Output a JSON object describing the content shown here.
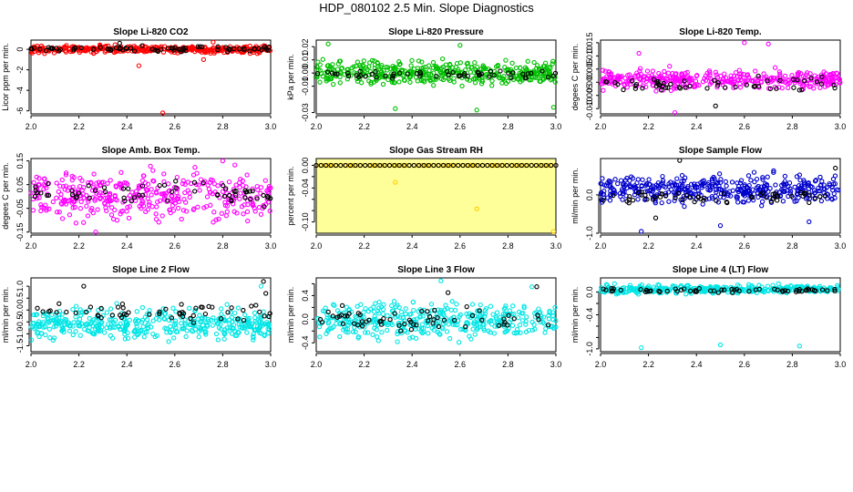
{
  "page": {
    "title": "HDP_080102  2.5 Min. Slope Diagnostics"
  },
  "chart_data": [
    {
      "type": "scatter",
      "title": "Slope Li-820 CO2",
      "ylabel": "Licor ppm per min.",
      "xlim": [
        2.0,
        3.0
      ],
      "ylim": [
        -6.3,
        0.9
      ],
      "xticks": [
        2.0,
        2.2,
        2.4,
        2.6,
        2.8,
        3.0
      ],
      "xticklabels": [
        "2.0",
        "2.2",
        "2.4",
        "2.6",
        "2.8",
        "3.0"
      ],
      "yticks": [
        -6,
        -4,
        -2,
        0
      ],
      "yticklabels": [
        "-6",
        "-4",
        "-2",
        "0"
      ],
      "background": "#ffffff",
      "series": [
        {
          "name": "all",
          "color": "#ff0000",
          "n": 380,
          "band": [
            -0.5,
            0.5
          ],
          "spread": 0.35,
          "outliers": [
            [
              2.45,
              -1.6
            ],
            [
              2.55,
              -6.2
            ],
            [
              2.72,
              -1.0
            ],
            [
              2.76,
              0.7
            ]
          ]
        },
        {
          "name": "highlight",
          "color": "#000000",
          "n": 75,
          "band": [
            -0.3,
            0.4
          ],
          "spread": 0.25,
          "outliers": [
            [
              2.37,
              0.6
            ]
          ]
        }
      ]
    },
    {
      "type": "scatter",
      "title": "Slope Li-820 Pressure",
      "ylabel": "kPa per min.",
      "xlim": [
        2.0,
        3.0
      ],
      "ylim": [
        -0.031,
        0.025
      ],
      "xticks": [
        2.0,
        2.2,
        2.4,
        2.6,
        2.8,
        3.0
      ],
      "xticklabels": [
        "2.0",
        "2.2",
        "2.4",
        "2.6",
        "2.8",
        "3.0"
      ],
      "yticks": [
        -0.03,
        -0.01,
        0.0,
        0.01,
        0.02
      ],
      "yticklabels": [
        "-0.03",
        "-0.01",
        "0.00",
        "0.01",
        "0.02"
      ],
      "background": "#ffffff",
      "series": [
        {
          "name": "all",
          "color": "#00c000",
          "n": 420,
          "band": [
            -0.012,
            0.012
          ],
          "spread": 0.0095,
          "outliers": [
            [
              2.05,
              0.022
            ],
            [
              2.33,
              -0.027
            ],
            [
              2.67,
              -0.028
            ],
            [
              2.99,
              -0.026
            ],
            [
              2.6,
              0.021
            ]
          ]
        },
        {
          "name": "highlight",
          "color": "#000000",
          "n": 55,
          "band": [
            -0.006,
            0.004
          ],
          "spread": 0.006,
          "outliers": []
        }
      ]
    },
    {
      "type": "scatter",
      "title": "Slope Li-820 Temp.",
      "ylabel": "degees C per min.",
      "xlim": [
        2.0,
        3.0
      ],
      "ylim": [
        -0.012,
        0.016
      ],
      "xticks": [
        2.0,
        2.2,
        2.4,
        2.6,
        2.8,
        3.0
      ],
      "xticklabels": [
        "2.0",
        "2.2",
        "2.4",
        "2.6",
        "2.8",
        "3.0"
      ],
      "yticks": [
        -0.01,
        -0.005,
        0.0,
        0.005,
        0.01,
        0.015
      ],
      "yticklabels": [
        "-0.010",
        "-0.005",
        "0.000",
        "0.005",
        "0.010",
        "0.015"
      ],
      "background": "#ffffff",
      "series": [
        {
          "name": "all",
          "color": "#ff00ff",
          "n": 380,
          "band": [
            -0.004,
            0.006
          ],
          "spread": 0.005,
          "outliers": [
            [
              2.31,
              -0.0115
            ],
            [
              2.6,
              0.015
            ],
            [
              2.7,
              0.0145
            ],
            [
              2.16,
              0.011
            ]
          ]
        },
        {
          "name": "highlight",
          "color": "#000000",
          "n": 55,
          "band": [
            -0.004,
            0.003
          ],
          "spread": 0.003,
          "outliers": [
            [
              2.48,
              -0.009
            ]
          ]
        }
      ]
    },
    {
      "type": "scatter",
      "title": "Slope Amb. Box Temp.",
      "ylabel": "degees C per min.",
      "xlim": [
        2.0,
        3.0
      ],
      "ylim": [
        -0.155,
        0.16
      ],
      "xticks": [
        2.0,
        2.2,
        2.4,
        2.6,
        2.8,
        3.0
      ],
      "xticklabels": [
        "2.0",
        "2.2",
        "2.4",
        "2.6",
        "2.8",
        "3.0"
      ],
      "yticks": [
        -0.15,
        -0.05,
        0.05,
        0.15
      ],
      "yticklabels": [
        "-0.15",
        "-0.05",
        "0.05",
        "0.15"
      ],
      "background": "#ffffff",
      "series": [
        {
          "name": "all",
          "color": "#ff00ff",
          "n": 380,
          "band": [
            -0.14,
            0.14
          ],
          "spread": 0.1,
          "outliers": [
            [
              2.8,
              0.15
            ],
            [
              2.27,
              -0.15
            ]
          ]
        },
        {
          "name": "highlight",
          "color": "#000000",
          "n": 60,
          "band": [
            -0.07,
            0.1
          ],
          "spread": 0.06,
          "outliers": []
        }
      ]
    },
    {
      "type": "scatter",
      "title": "Slope Gas Stream RH",
      "ylabel": "percent per min.",
      "xlim": [
        2.0,
        3.0
      ],
      "ylim": [
        -0.12,
        0.012
      ],
      "xticks": [
        2.0,
        2.2,
        2.4,
        2.6,
        2.8,
        3.0
      ],
      "xticklabels": [
        "2.0",
        "2.2",
        "2.4",
        "2.6",
        "2.8",
        "3.0"
      ],
      "yticks": [
        -0.1,
        -0.08,
        -0.06,
        -0.04,
        -0.02,
        0.0
      ],
      "yticklabels": [
        "-0.10",
        "",
        "",
        "-0.04",
        "",
        "0.00"
      ],
      "background": "#ffff99",
      "series": [
        {
          "name": "all",
          "color": "#ffcc00",
          "n": 60,
          "band": [
            0.0,
            0.0
          ],
          "spread": 0.0,
          "outliers": [
            [
              2.33,
              -0.03
            ],
            [
              2.67,
              -0.077
            ],
            [
              2.99,
              -0.117
            ]
          ]
        },
        {
          "name": "highlight",
          "color": "#000000",
          "n": 50,
          "band": [
            0.0,
            0.0
          ],
          "spread": 0.0,
          "outliers": []
        }
      ]
    },
    {
      "type": "scatter",
      "title": "Slope Sample Flow",
      "ylabel": "ml/min per min.",
      "xlim": [
        2.0,
        3.0
      ],
      "ylim": [
        -1.0,
        0.95
      ],
      "xticks": [
        2.0,
        2.2,
        2.4,
        2.6,
        2.8,
        3.0
      ],
      "xticklabels": [
        "2.0",
        "2.2",
        "2.4",
        "2.6",
        "2.8",
        "3.0"
      ],
      "yticks": [
        -1.0,
        0.0
      ],
      "yticklabels": [
        "-1.0",
        "0.0"
      ],
      "background": "#ffffff",
      "series": [
        {
          "name": "all",
          "color": "#0000cc",
          "n": 420,
          "band": [
            -0.35,
            0.65
          ],
          "spread": 0.45,
          "outliers": [
            [
              2.17,
              -0.95
            ],
            [
              2.5,
              -0.8
            ],
            [
              2.87,
              -0.7
            ]
          ]
        },
        {
          "name": "highlight",
          "color": "#000000",
          "n": 55,
          "band": [
            -0.3,
            0.2
          ],
          "spread": 0.3,
          "outliers": [
            [
              2.33,
              0.9
            ],
            [
              2.98,
              0.7
            ],
            [
              2.23,
              -0.6
            ]
          ]
        }
      ]
    },
    {
      "type": "scatter",
      "title": "Slope Line 2 Flow",
      "ylabel": "ml/min per min.",
      "xlim": [
        2.0,
        3.0
      ],
      "ylim": [
        -1.75,
        1.35
      ],
      "xticks": [
        2.0,
        2.2,
        2.4,
        2.6,
        2.8,
        3.0
      ],
      "xticklabels": [
        "2.0",
        "2.2",
        "2.4",
        "2.6",
        "2.8",
        "3.0"
      ],
      "yticks": [
        -1.5,
        -1.0,
        -0.5,
        0.0,
        0.5,
        1.0
      ],
      "yticklabels": [
        "-1.5",
        "-1.0",
        "-0.5",
        "0.0",
        "0.5",
        "1.0"
      ],
      "background": "#ffffff",
      "series": [
        {
          "name": "all",
          "color": "#00e5e5",
          "n": 420,
          "band": [
            -1.5,
            0.3
          ],
          "spread": 0.9,
          "outliers": [
            [
              2.96,
              1.0
            ]
          ]
        },
        {
          "name": "highlight",
          "color": "#000000",
          "n": 55,
          "band": [
            -0.6,
            0.5
          ],
          "spread": 0.35,
          "outliers": [
            [
              2.22,
              1.0
            ],
            [
              2.97,
              1.2
            ],
            [
              2.98,
              0.7
            ]
          ]
        }
      ]
    },
    {
      "type": "scatter",
      "title": "Slope Line 3 Flow",
      "ylabel": "ml/min per min.",
      "xlim": [
        2.0,
        3.0
      ],
      "ylim": [
        -0.55,
        0.7
      ],
      "xticks": [
        2.0,
        2.2,
        2.4,
        2.6,
        2.8,
        3.0
      ],
      "xticklabels": [
        "2.0",
        "2.2",
        "2.4",
        "2.6",
        "2.8",
        "3.0"
      ],
      "yticks": [
        -0.4,
        -0.2,
        0.0,
        0.2,
        0.4,
        0.6
      ],
      "yticklabels": [
        "-0.4",
        "",
        "0.0",
        "",
        "0.4",
        ""
      ],
      "background": "#ffffff",
      "series": [
        {
          "name": "all",
          "color": "#00e5e5",
          "n": 400,
          "band": [
            -0.45,
            0.4
          ],
          "spread": 0.3,
          "outliers": [
            [
              2.52,
              0.65
            ],
            [
              2.9,
              0.55
            ]
          ]
        },
        {
          "name": "highlight",
          "color": "#000000",
          "n": 60,
          "band": [
            -0.3,
            0.3
          ],
          "spread": 0.22,
          "outliers": [
            [
              2.92,
              0.55
            ],
            [
              2.55,
              0.45
            ]
          ]
        }
      ]
    },
    {
      "type": "scatter",
      "title": "Slope Line 4 (LT) Flow",
      "ylabel": "ml/min per min.",
      "xlim": [
        2.0,
        3.0
      ],
      "ylim": [
        -1.05,
        0.25
      ],
      "xticks": [
        2.0,
        2.2,
        2.4,
        2.6,
        2.8,
        3.0
      ],
      "xticklabels": [
        "2.0",
        "2.2",
        "2.4",
        "2.6",
        "2.8",
        "3.0"
      ],
      "yticks": [
        -1.0,
        -0.8,
        -0.6,
        -0.4,
        -0.2,
        0.0
      ],
      "yticklabels": [
        "-1.0",
        "",
        "",
        "-0.4",
        "",
        "0.0"
      ],
      "background": "#ffffff",
      "series": [
        {
          "name": "all",
          "color": "#00e5e5",
          "n": 380,
          "band": [
            -0.05,
            0.15
          ],
          "spread": 0.07,
          "outliers": [
            [
              2.17,
              -0.98
            ],
            [
              2.5,
              -0.93
            ],
            [
              2.83,
              -0.95
            ]
          ]
        },
        {
          "name": "highlight",
          "color": "#000000",
          "n": 60,
          "band": [
            -0.02,
            0.08
          ],
          "spread": 0.05,
          "outliers": []
        }
      ]
    }
  ]
}
